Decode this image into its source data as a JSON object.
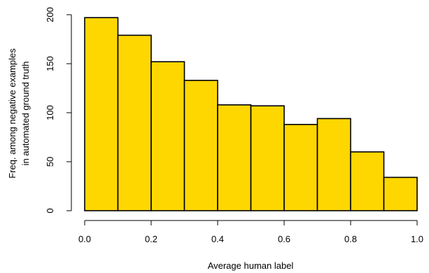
{
  "chart_data": {
    "type": "bar",
    "subtype": "histogram",
    "bin_edges": [
      0.0,
      0.1,
      0.2,
      0.3,
      0.4,
      0.5,
      0.6,
      0.7,
      0.8,
      0.9,
      1.0
    ],
    "values": [
      197,
      179,
      152,
      133,
      108,
      107,
      88,
      94,
      60,
      34
    ],
    "xlabel": "Average human label",
    "ylabel_lines": [
      "Freq. among negative examples",
      "in automated ground truth"
    ],
    "xlim": [
      0,
      1
    ],
    "ylim": [
      0,
      200
    ],
    "x_ticks": [
      "0.0",
      "0.2",
      "0.4",
      "0.6",
      "0.8",
      "1.0"
    ],
    "y_ticks": [
      "0",
      "50",
      "100",
      "150",
      "200"
    ],
    "bar_color": "#FFD700",
    "border_color": "#000000",
    "grid": false,
    "legend": "none"
  }
}
